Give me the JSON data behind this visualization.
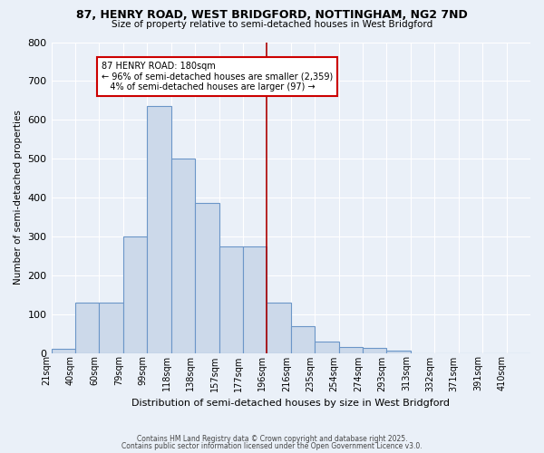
{
  "title1": "87, HENRY ROAD, WEST BRIDGFORD, NOTTINGHAM, NG2 7ND",
  "title2": "Size of property relative to semi-detached houses in West Bridgford",
  "xlabel": "Distribution of semi-detached houses by size in West Bridgford",
  "ylabel": "Number of semi-detached properties",
  "bg_color": "#eaf0f8",
  "bar_color": "#ccd9ea",
  "bar_edge_color": "#6b96c8",
  "grid_color": "#ffffff",
  "bins": [
    "21sqm",
    "40sqm",
    "60sqm",
    "79sqm",
    "99sqm",
    "118sqm",
    "138sqm",
    "157sqm",
    "177sqm",
    "196sqm",
    "216sqm",
    "235sqm",
    "254sqm",
    "274sqm",
    "293sqm",
    "313sqm",
    "332sqm",
    "371sqm",
    "391sqm",
    "410sqm"
  ],
  "values": [
    10,
    130,
    130,
    300,
    635,
    500,
    385,
    275,
    275,
    130,
    70,
    30,
    15,
    12,
    5,
    0,
    0,
    0,
    0,
    0
  ],
  "vline_bin_index": 8,
  "vline_color": "#aa0000",
  "annotation_line1": "87 HENRY ROAD: 180sqm",
  "annotation_line2": "← 96% of semi-detached houses are smaller (2,359)",
  "annotation_line3": "   4% of semi-detached houses are larger (97) →",
  "annotation_box_color": "#cc0000",
  "annotation_fill": "#ffffff",
  "ylim": [
    0,
    800
  ],
  "yticks": [
    0,
    100,
    200,
    300,
    400,
    500,
    600,
    700,
    800
  ],
  "footer1": "Contains HM Land Registry data © Crown copyright and database right 2025.",
  "footer2": "Contains public sector information licensed under the Open Government Licence v3.0."
}
